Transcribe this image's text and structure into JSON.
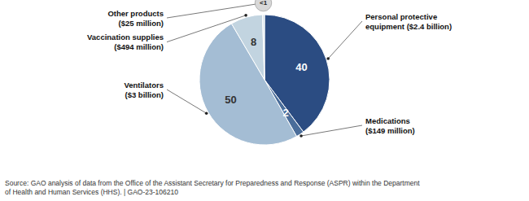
{
  "chart_data": {
    "type": "pie",
    "categories": [
      "Personal protective\nequipment ($2.4 billion)",
      "Medications\n($149 million)",
      "Ventilators\n($3 billion)",
      "Vaccination supplies\n($494 million)",
      "Other products\n($25 million)"
    ],
    "values": [
      40,
      2,
      50,
      8,
      0.5
    ],
    "value_labels": [
      "40",
      "2",
      "50",
      "8",
      "<1"
    ],
    "data_labels": true,
    "colors": [
      "#2B4C82",
      "#4A6D9A",
      "#A4BDD4",
      "#C2D4E0",
      "#D8E6EE"
    ],
    "source": "Source: GAO analysis of data from the Office of the Assistant Secretary for Preparedness and Response (ASPR) within the Department\nof Health and Human Services (HHS).  |  GAO-23-106210"
  }
}
